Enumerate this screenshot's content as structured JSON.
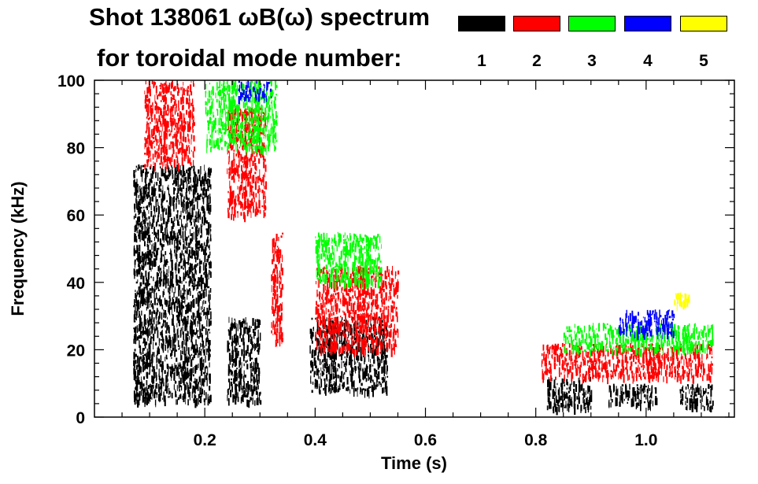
{
  "header": {
    "title_line1": "Shot 138061 ωB(ω) spectrum",
    "title_line2": "for toroidal mode number:"
  },
  "legend": [
    {
      "mode": "1",
      "color": "#000000"
    },
    {
      "mode": "2",
      "color": "#ff0000"
    },
    {
      "mode": "3",
      "color": "#00ff00"
    },
    {
      "mode": "4",
      "color": "#0000ff"
    },
    {
      "mode": "5",
      "color": "#ffff00"
    }
  ],
  "chart_data": {
    "type": "heatmap",
    "title": "Shot 138061 ωB(ω) spectrum",
    "xlabel": "Time (s)",
    "ylabel": "Frequency (kHz)",
    "xlim": [
      0.0,
      1.16
    ],
    "ylim": [
      0,
      100
    ],
    "xticks": [
      0.2,
      0.4,
      0.6,
      0.8,
      1.0
    ],
    "xtick_labels": [
      "0.2",
      "0.4",
      "0.6",
      "0.8",
      "1.0"
    ],
    "yticks": [
      0,
      20,
      40,
      60,
      80,
      100
    ],
    "ytick_labels": [
      "0",
      "20",
      "40",
      "60",
      "80",
      "100"
    ],
    "series": [
      {
        "name": "1",
        "color": "#000000",
        "blobs": [
          {
            "t0": 0.07,
            "t1": 0.21,
            "f0": 5,
            "f1": 75
          },
          {
            "t0": 0.24,
            "t1": 0.3,
            "f0": 5,
            "f1": 30
          },
          {
            "t0": 0.39,
            "t1": 0.53,
            "f0": 8,
            "f1": 30
          },
          {
            "t0": 0.82,
            "t1": 0.9,
            "f0": 3,
            "f1": 12
          },
          {
            "t0": 0.93,
            "t1": 1.02,
            "f0": 4,
            "f1": 10
          },
          {
            "t0": 1.06,
            "t1": 1.12,
            "f0": 3,
            "f1": 10
          }
        ]
      },
      {
        "name": "2",
        "color": "#ff0000",
        "blobs": [
          {
            "t0": 0.09,
            "t1": 0.18,
            "f0": 75,
            "f1": 100
          },
          {
            "t0": 0.24,
            "t1": 0.31,
            "f0": 60,
            "f1": 92
          },
          {
            "t0": 0.32,
            "t1": 0.34,
            "f0": 22,
            "f1": 55
          },
          {
            "t0": 0.4,
            "t1": 0.55,
            "f0": 20,
            "f1": 45
          },
          {
            "t0": 0.81,
            "t1": 1.12,
            "f0": 12,
            "f1": 22
          }
        ]
      },
      {
        "name": "3",
        "color": "#00ff00",
        "blobs": [
          {
            "t0": 0.2,
            "t1": 0.33,
            "f0": 80,
            "f1": 100
          },
          {
            "t0": 0.4,
            "t1": 0.52,
            "f0": 40,
            "f1": 55
          },
          {
            "t0": 0.85,
            "t1": 1.12,
            "f0": 20,
            "f1": 28
          }
        ]
      },
      {
        "name": "4",
        "color": "#0000ff",
        "blobs": [
          {
            "t0": 0.26,
            "t1": 0.32,
            "f0": 95,
            "f1": 100
          },
          {
            "t0": 0.95,
            "t1": 1.05,
            "f0": 25,
            "f1": 32
          }
        ]
      },
      {
        "name": "5",
        "color": "#ffff00",
        "blobs": [
          {
            "t0": 1.05,
            "t1": 1.08,
            "f0": 34,
            "f1": 37
          }
        ]
      }
    ]
  }
}
